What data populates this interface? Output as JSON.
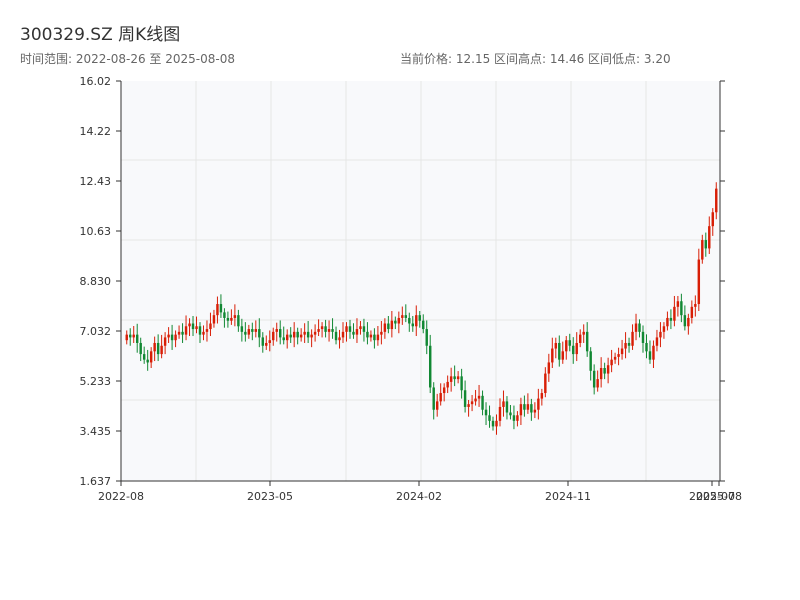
{
  "header": {
    "title": "300329.SZ 周K线图",
    "range_text": "时间范围: 2022-08-26 至 2025-08-08",
    "stats_text": "当前价格: 12.15   区间高点: 14.46   区间低点: 3.20"
  },
  "colors": {
    "up": "#d81e06",
    "down": "#118833",
    "grid": "#e6e6e6",
    "plot_bg": "#f8f9fb",
    "axis": "#333333"
  },
  "chart_data": {
    "type": "candlestick",
    "title": "300329.SZ 周K线图",
    "xlabel": "",
    "ylabel": "",
    "ylim": [
      1.637,
      16.02
    ],
    "y_ticks": [
      "1.637",
      "3.435",
      "5.233",
      "7.032",
      "8.830",
      "10.63",
      "12.43",
      "14.22",
      "16.02"
    ],
    "x_ticks": [
      "2022-08",
      "2023-05",
      "2024-02",
      "2024-11",
      "2025-07",
      "2025-08"
    ],
    "x_range": [
      "2022-08-26",
      "2025-08-08"
    ],
    "current_price": 12.15,
    "period_high": 14.46,
    "period_low": 3.2,
    "grid": true,
    "weekly_closes": [
      6.9,
      6.8,
      6.9,
      6.6,
      6.2,
      6.0,
      5.9,
      6.3,
      6.6,
      6.2,
      6.5,
      6.8,
      6.9,
      6.7,
      6.9,
      7.0,
      6.9,
      7.2,
      7.3,
      7.1,
      7.2,
      6.9,
      7.0,
      7.1,
      7.3,
      7.6,
      8.0,
      7.7,
      7.5,
      7.4,
      7.5,
      7.6,
      7.2,
      7.0,
      6.9,
      7.1,
      7.0,
      7.1,
      6.8,
      6.5,
      6.6,
      6.7,
      7.0,
      7.1,
      6.8,
      6.7,
      6.9,
      6.8,
      7.0,
      6.8,
      6.9,
      7.0,
      6.8,
      6.9,
      7.0,
      7.1,
      7.2,
      7.0,
      7.1,
      7.0,
      6.7,
      6.8,
      7.0,
      7.2,
      7.0,
      6.9,
      7.1,
      7.2,
      7.0,
      6.8,
      6.9,
      6.7,
      6.9,
      7.0,
      7.3,
      7.1,
      7.4,
      7.3,
      7.5,
      7.6,
      7.5,
      7.3,
      7.2,
      7.6,
      7.4,
      7.1,
      6.5,
      5.0,
      4.2,
      4.5,
      4.8,
      5.0,
      5.2,
      5.4,
      5.3,
      5.4,
      4.9,
      4.3,
      4.4,
      4.5,
      4.6,
      4.7,
      4.2,
      4.0,
      3.8,
      3.6,
      3.8,
      4.3,
      4.5,
      4.1,
      4.0,
      3.8,
      4.0,
      4.4,
      4.2,
      4.4,
      4.1,
      4.2,
      4.6,
      4.8,
      5.5,
      5.9,
      6.4,
      6.6,
      6.0,
      6.3,
      6.7,
      6.5,
      6.2,
      6.6,
      6.9,
      7.0,
      6.3,
      5.6,
      5.0,
      5.3,
      5.7,
      5.5,
      5.8,
      6.0,
      6.1,
      6.2,
      6.4,
      6.6,
      6.5,
      7.0,
      7.3,
      7.0,
      6.6,
      6.3,
      6.0,
      6.5,
      6.8,
      7.0,
      7.2,
      7.5,
      7.4,
      7.9,
      8.1,
      7.6,
      7.2,
      7.5,
      7.9,
      8.0,
      9.6,
      10.3,
      10.0,
      10.8,
      11.3,
      12.15
    ]
  }
}
